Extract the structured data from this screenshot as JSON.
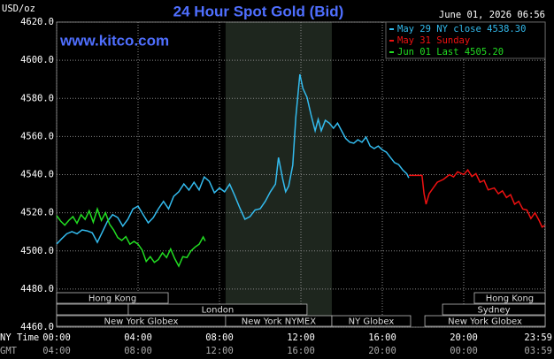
{
  "chart_data": {
    "type": "line",
    "title": "24 Hour Spot Gold (Bid)",
    "timestamp": "June 01, 2026 06:56",
    "watermark": "www.kitco.com",
    "ylabel": "USD/oz",
    "xlabel": "NY Time",
    "x2label": "GMT",
    "grid": true,
    "legend": "upper right",
    "xlim": [
      0,
      24
    ],
    "ylim": [
      4460,
      4620
    ],
    "yticks": [
      {
        "value": 4460,
        "label": "4460.0"
      },
      {
        "value": 4480,
        "label": "4480.0"
      },
      {
        "value": 4500,
        "label": "4500.0"
      },
      {
        "value": 4520,
        "label": "4520.0"
      },
      {
        "value": 4540,
        "label": "4540.0"
      },
      {
        "value": 4560,
        "label": "4560.0"
      },
      {
        "value": 4580,
        "label": "4580.0"
      },
      {
        "value": 4600,
        "label": "4600.0"
      },
      {
        "value": 4620,
        "label": "4620.0"
      }
    ],
    "xticks": [
      {
        "value": 0,
        "label": "00:00"
      },
      {
        "value": 4,
        "label": "04:00"
      },
      {
        "value": 8,
        "label": "08:00"
      },
      {
        "value": 12,
        "label": "12:00"
      },
      {
        "value": 16,
        "label": "16:00"
      },
      {
        "value": 20,
        "label": "20:00"
      },
      {
        "value": 23.98,
        "label": "23:59"
      }
    ],
    "x2ticks": [
      {
        "value": 0,
        "label": "04:00"
      },
      {
        "value": 4,
        "label": "08:00"
      },
      {
        "value": 8,
        "label": "12:00"
      },
      {
        "value": 12,
        "label": "16:00"
      },
      {
        "value": 16,
        "label": "20:00"
      },
      {
        "value": 20,
        "label": "00:00"
      },
      {
        "value": 23.98,
        "label": "03:59"
      }
    ],
    "sessions": [
      "Hong Kong",
      "Hong Kong",
      "London",
      "Sydney",
      "New York Globex",
      "New York NYMEX",
      "NY Globex",
      "New York Globex"
    ],
    "series": [
      {
        "name": "May 29 NY close 4538.30",
        "color": "#33bbee",
        "x": [
          0,
          0.25,
          0.5,
          0.75,
          1.0,
          1.25,
          1.5,
          1.75,
          2.0,
          2.25,
          2.5,
          2.75,
          3.0,
          3.25,
          3.5,
          3.75,
          4.0,
          4.25,
          4.5,
          4.75,
          5.0,
          5.25,
          5.5,
          5.75,
          6.0,
          6.25,
          6.5,
          6.75,
          7.0,
          7.25,
          7.5,
          7.75,
          8.0,
          8.25,
          8.5,
          8.75,
          9.0,
          9.25,
          9.5,
          9.75,
          10.0,
          10.25,
          10.5,
          10.75,
          10.9,
          11.1,
          11.25,
          11.4,
          11.6,
          11.75,
          11.95,
          12.1,
          12.3,
          12.5,
          12.7,
          12.85,
          13.0,
          13.2,
          13.4,
          13.6,
          13.8,
          14.0,
          14.2,
          14.4,
          14.6,
          14.8,
          15.0,
          15.2,
          15.4,
          15.6,
          15.8,
          16.0,
          16.2,
          16.4,
          16.6,
          16.8,
          17.0,
          17.2,
          17.3
        ],
        "values": [
          4503.6,
          4506.4,
          4509,
          4510.1,
          4509,
          4511,
          4510.5,
          4509.5,
          4504.5,
          4510,
          4515.6,
          4519,
          4517.5,
          4513,
          4516.6,
          4522,
          4523.5,
          4519,
          4514.7,
          4517.5,
          4522.1,
          4526,
          4522,
          4528.6,
          4531,
          4535.1,
          4531.9,
          4536,
          4532,
          4538.8,
          4536.5,
          4530.5,
          4533,
          4531,
          4535,
          4529,
          4522.5,
          4516.6,
          4518,
          4521.5,
          4522.1,
          4526,
          4531,
          4535,
          4549,
          4538,
          4531,
          4534,
          4545,
          4570,
          4592.6,
          4585.2,
          4580.6,
          4571.3,
          4563,
          4569,
          4563,
          4568.5,
          4567,
          4564.3,
          4567,
          4563,
          4559,
          4557,
          4556.5,
          4558.3,
          4557,
          4559.7,
          4555,
          4553.7,
          4555,
          4553,
          4551.8,
          4549,
          4546.3,
          4545.3,
          4542.5,
          4540.5,
          4538.3
        ]
      },
      {
        "name": "May 31 Sunday",
        "color": "#ee1111",
        "x": [
          17.3,
          17.95,
          18.05,
          18.15,
          18.3,
          18.5,
          18.7,
          19.0,
          19.3,
          19.5,
          19.7,
          20.0,
          20.2,
          20.4,
          20.6,
          20.8,
          21.0,
          21.2,
          21.5,
          21.7,
          21.9,
          22.1,
          22.3,
          22.5,
          22.7,
          22.9,
          23.1,
          23.3,
          23.5,
          23.7,
          23.85,
          23.98
        ],
        "values": [
          4539.6,
          4539.6,
          4530,
          4524.5,
          4530,
          4533,
          4536,
          4537.5,
          4540,
          4538.8,
          4541.5,
          4540,
          4542.5,
          4539,
          4540.5,
          4536,
          4537,
          4532,
          4533,
          4530,
          4531.5,
          4528,
          4529.5,
          4524.5,
          4526,
          4522,
          4521.5,
          4517,
          4520,
          4516,
          4512.5,
          4513.3
        ]
      },
      {
        "name": "Jun 01 Last 4505.20",
        "color": "#22dd22",
        "x": [
          0,
          0.2,
          0.4,
          0.6,
          0.8,
          1.0,
          1.2,
          1.4,
          1.6,
          1.8,
          2.0,
          2.2,
          2.4,
          2.6,
          2.8,
          3.0,
          3.2,
          3.4,
          3.6,
          3.8,
          4.0,
          4.2,
          4.4,
          4.6,
          4.8,
          5.0,
          5.2,
          5.4,
          5.6,
          5.8,
          6.0,
          6.2,
          6.4,
          6.6,
          6.8,
          7.0,
          7.2,
          7.3
        ],
        "values": [
          4518.5,
          4515.6,
          4513.5,
          4516,
          4518,
          4514.5,
          4519,
          4516.5,
          4521,
          4515,
          4522,
          4516,
          4520,
          4514,
          4511,
          4507,
          4505.5,
          4507.5,
          4503.5,
          4505,
          4503.5,
          4500.5,
          4494.5,
          4497,
          4494,
          4495.5,
          4499,
          4496.5,
          4501,
          4496,
          4492,
          4497,
          4496.5,
          4500,
          4502,
          4503.5,
          4507.3,
          4505.2
        ]
      }
    ]
  }
}
